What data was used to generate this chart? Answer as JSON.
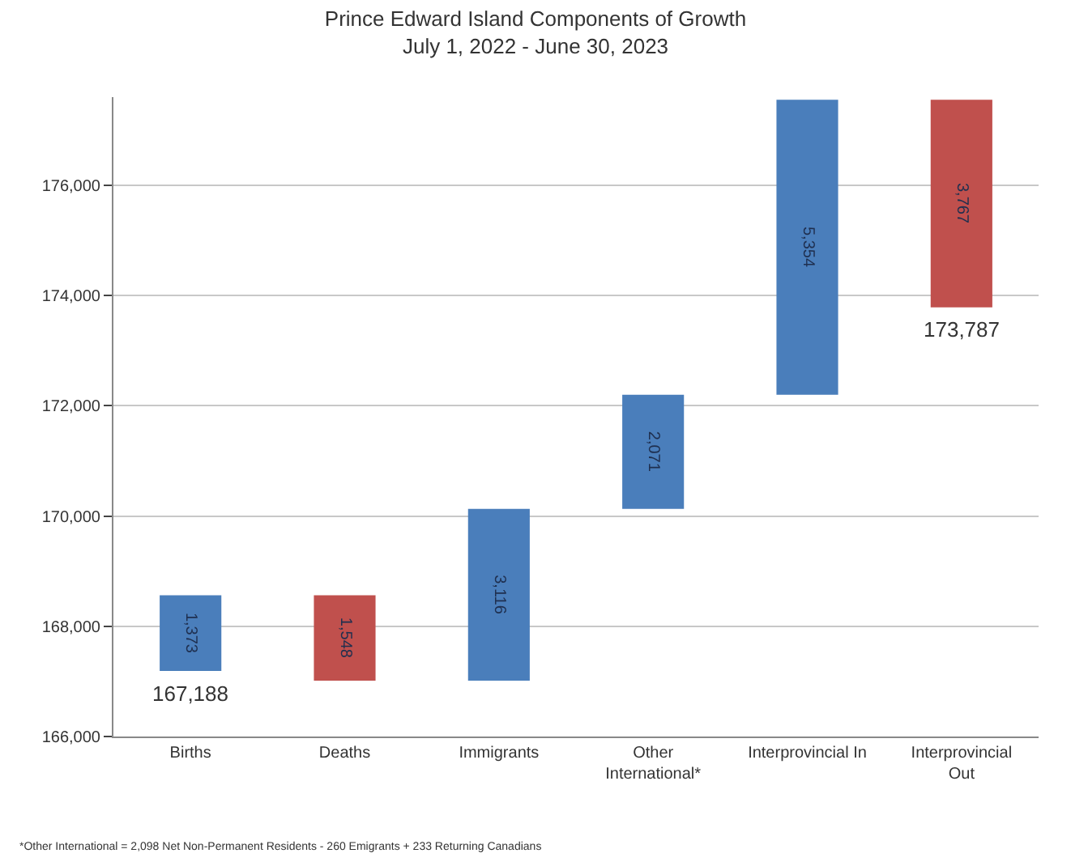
{
  "chart_data": {
    "type": "bar",
    "title": "Prince Edward Island Components of Growth",
    "subtitle": "July 1, 2022 - June 30, 2023",
    "categories": [
      "Births",
      "Deaths",
      "Immigrants",
      "Other International*",
      "Interprovincial In",
      "Interprovincial Out"
    ],
    "base": [
      167188,
      168561,
      167013,
      170129,
      172200,
      177554
    ],
    "values": [
      1373,
      -1548,
      3116,
      2071,
      5354,
      -3767
    ],
    "value_labels": [
      "1,373",
      "1,548",
      "3,116",
      "2,071",
      "5,354",
      "3,767"
    ],
    "colors": [
      "#4a7ebb",
      "#c0504d",
      "#4a7ebb",
      "#4a7ebb",
      "#4a7ebb",
      "#c0504d"
    ],
    "ylim": [
      166000,
      177600
    ],
    "yticks": [
      {
        "value": 166000,
        "label": "166,000"
      },
      {
        "value": 168000,
        "label": "168,000"
      },
      {
        "value": 170000,
        "label": "170,000"
      },
      {
        "value": 172000,
        "label": "172,000"
      },
      {
        "value": 174000,
        "label": "174,000"
      },
      {
        "value": 176000,
        "label": "176,000"
      }
    ],
    "grid": "y",
    "annotations": [
      {
        "text": "167,188",
        "x": "Births",
        "y": 167188
      },
      {
        "text": "173,787",
        "x": "Interprovincial Out",
        "y": 173787
      },
      "*Other International = 2,098 Net Non-Permanent Residents - 260 Emigrants + 233 Returning Canadians"
    ]
  }
}
